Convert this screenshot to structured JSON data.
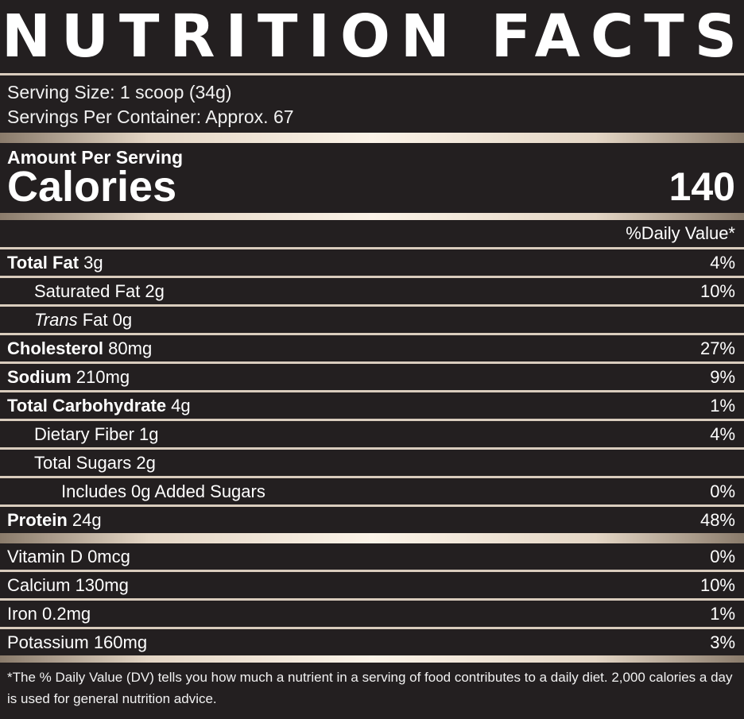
{
  "title": "NUTRITION FACTS",
  "serving": {
    "size": "Serving Size: 1 scoop (34g)",
    "per_container": "Servings Per Container: Approx. 67"
  },
  "amount": {
    "label": "Amount Per Serving",
    "calories_label": "Calories",
    "calories_value": "140"
  },
  "dv_header": "%Daily Value*",
  "nutrients": {
    "total_fat": {
      "name": "Total Fat",
      "amount": " 3g",
      "dv": "4%"
    },
    "saturated_fat": {
      "name": "Saturated Fat 2g",
      "dv": "10%"
    },
    "trans_fat": {
      "name_italic": "Trans",
      "name_rest": " Fat 0g",
      "dv": ""
    },
    "cholesterol": {
      "name": "Cholesterol",
      "amount": " 80mg",
      "dv": "27%"
    },
    "sodium": {
      "name": "Sodium",
      "amount": " 210mg",
      "dv": "9%"
    },
    "total_carb": {
      "name": "Total Carbohydrate",
      "amount": " 4g",
      "dv": "1%"
    },
    "dietary_fiber": {
      "name": "Dietary Fiber 1g",
      "dv": "4%"
    },
    "total_sugars": {
      "name": "Total Sugars 2g",
      "dv": ""
    },
    "added_sugars": {
      "name": "Includes 0g Added Sugars",
      "dv": "0%"
    },
    "protein": {
      "name": "Protein",
      "amount": " 24g",
      "dv": "48%"
    }
  },
  "vitamins": {
    "vitamin_d": {
      "name": "Vitamin D 0mcg",
      "dv": "0%"
    },
    "calcium": {
      "name": "Calcium 130mg",
      "dv": "10%"
    },
    "iron": {
      "name": "Iron 0.2mg",
      "dv": "1%"
    },
    "potassium": {
      "name": "Potassium 160mg",
      "dv": "3%"
    }
  },
  "footnote": "*The % Daily Value (DV) tells you how much a nutrient in a serving of food contributes to a daily diet. 2,000 calories a day is used for general nutrition advice.",
  "colors": {
    "background": "#231f20",
    "text": "#ffffff",
    "rule": "#d9ccbd"
  }
}
